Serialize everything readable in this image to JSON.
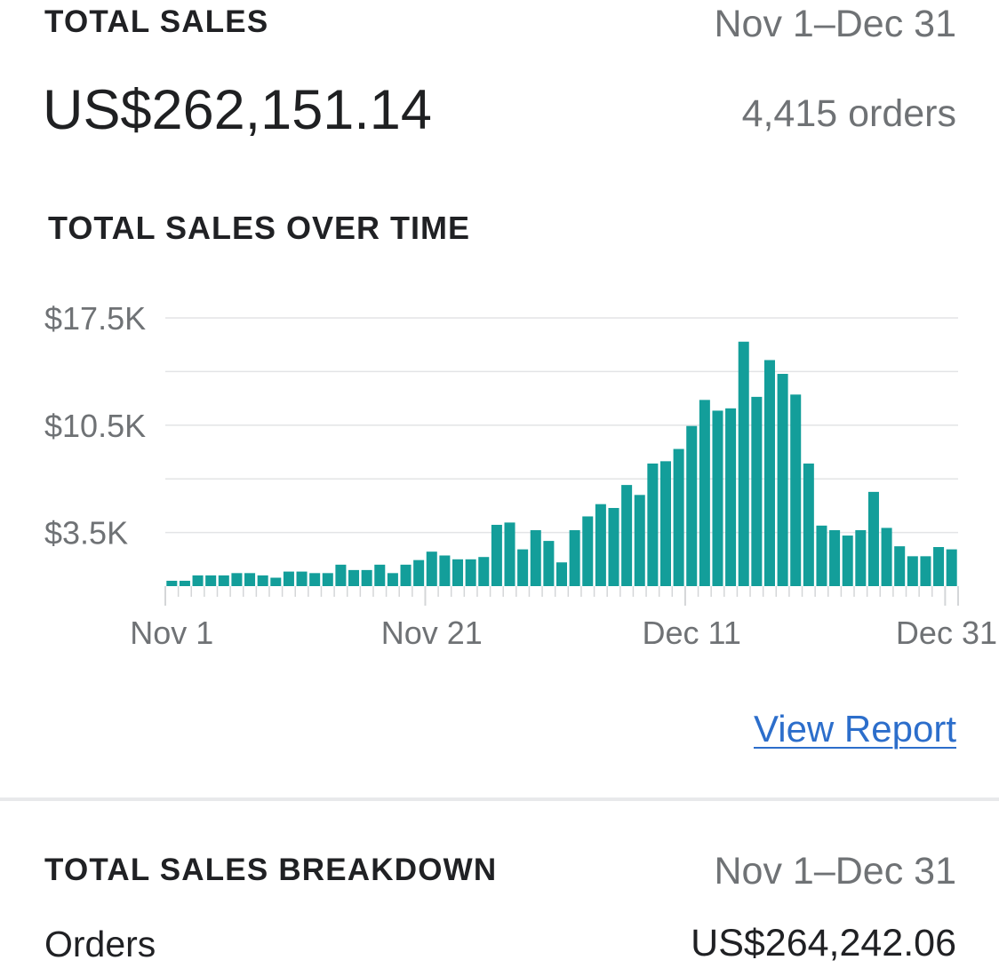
{
  "summary": {
    "title": "TOTAL SALES",
    "date_range": "Nov 1–Dec 31",
    "amount": "US$262,151.14",
    "orders": "4,415 orders"
  },
  "chart_section": {
    "title": "TOTAL SALES OVER TIME",
    "view_report_label": "View Report"
  },
  "breakdown": {
    "title": "TOTAL SALES BREAKDOWN",
    "date_range": "Nov 1–Dec 31",
    "rows": [
      {
        "label": "Orders",
        "value": "US$264,242.06"
      }
    ]
  },
  "colors": {
    "bar": "#139e9a",
    "link": "#2c6ecb",
    "grid": "#e3e4e6"
  },
  "chart_data": {
    "type": "bar",
    "title": "TOTAL SALES OVER TIME",
    "xlabel": "",
    "ylabel": "",
    "y_ticks": [
      "$3.5K",
      "$10.5K",
      "$17.5K"
    ],
    "y_tick_values": [
      3500,
      10500,
      17500
    ],
    "ylim": [
      0,
      17500
    ],
    "x_tick_labels": [
      "Nov 1",
      "Nov 21",
      "Dec 11",
      "Dec 31"
    ],
    "x_tick_indices": [
      0,
      20,
      40,
      60
    ],
    "grid": true,
    "categories": [
      "Nov 1",
      "Nov 2",
      "Nov 3",
      "Nov 4",
      "Nov 5",
      "Nov 6",
      "Nov 7",
      "Nov 8",
      "Nov 9",
      "Nov 10",
      "Nov 11",
      "Nov 12",
      "Nov 13",
      "Nov 14",
      "Nov 15",
      "Nov 16",
      "Nov 17",
      "Nov 18",
      "Nov 19",
      "Nov 20",
      "Nov 21",
      "Nov 22",
      "Nov 23",
      "Nov 24",
      "Nov 25",
      "Nov 26",
      "Nov 27",
      "Nov 28",
      "Nov 29",
      "Nov 30",
      "Dec 1",
      "Dec 2",
      "Dec 3",
      "Dec 4",
      "Dec 5",
      "Dec 6",
      "Dec 7",
      "Dec 8",
      "Dec 9",
      "Dec 10",
      "Dec 11",
      "Dec 12",
      "Dec 13",
      "Dec 14",
      "Dec 15",
      "Dec 16",
      "Dec 17",
      "Dec 18",
      "Dec 19",
      "Dec 20",
      "Dec 21",
      "Dec 22",
      "Dec 23",
      "Dec 24",
      "Dec 25",
      "Dec 26",
      "Dec 27",
      "Dec 28",
      "Dec 29",
      "Dec 30",
      "Dec 31"
    ],
    "values": [
      350,
      350,
      700,
      700,
      700,
      850,
      850,
      700,
      550,
      950,
      950,
      850,
      850,
      1400,
      1050,
      1050,
      1400,
      850,
      1400,
      1700,
      2250,
      2000,
      1750,
      1750,
      1900,
      4000,
      4150,
      2400,
      3650,
      2950,
      1550,
      3650,
      4550,
      5350,
      5100,
      6600,
      5950,
      8000,
      8150,
      8950,
      10450,
      12150,
      11450,
      11600,
      15950,
      12350,
      14750,
      13850,
      12500,
      8000,
      3950,
      3650,
      3300,
      3650,
      6150,
      3800,
      2600,
      1950,
      1950,
      2550,
      2400
    ]
  }
}
